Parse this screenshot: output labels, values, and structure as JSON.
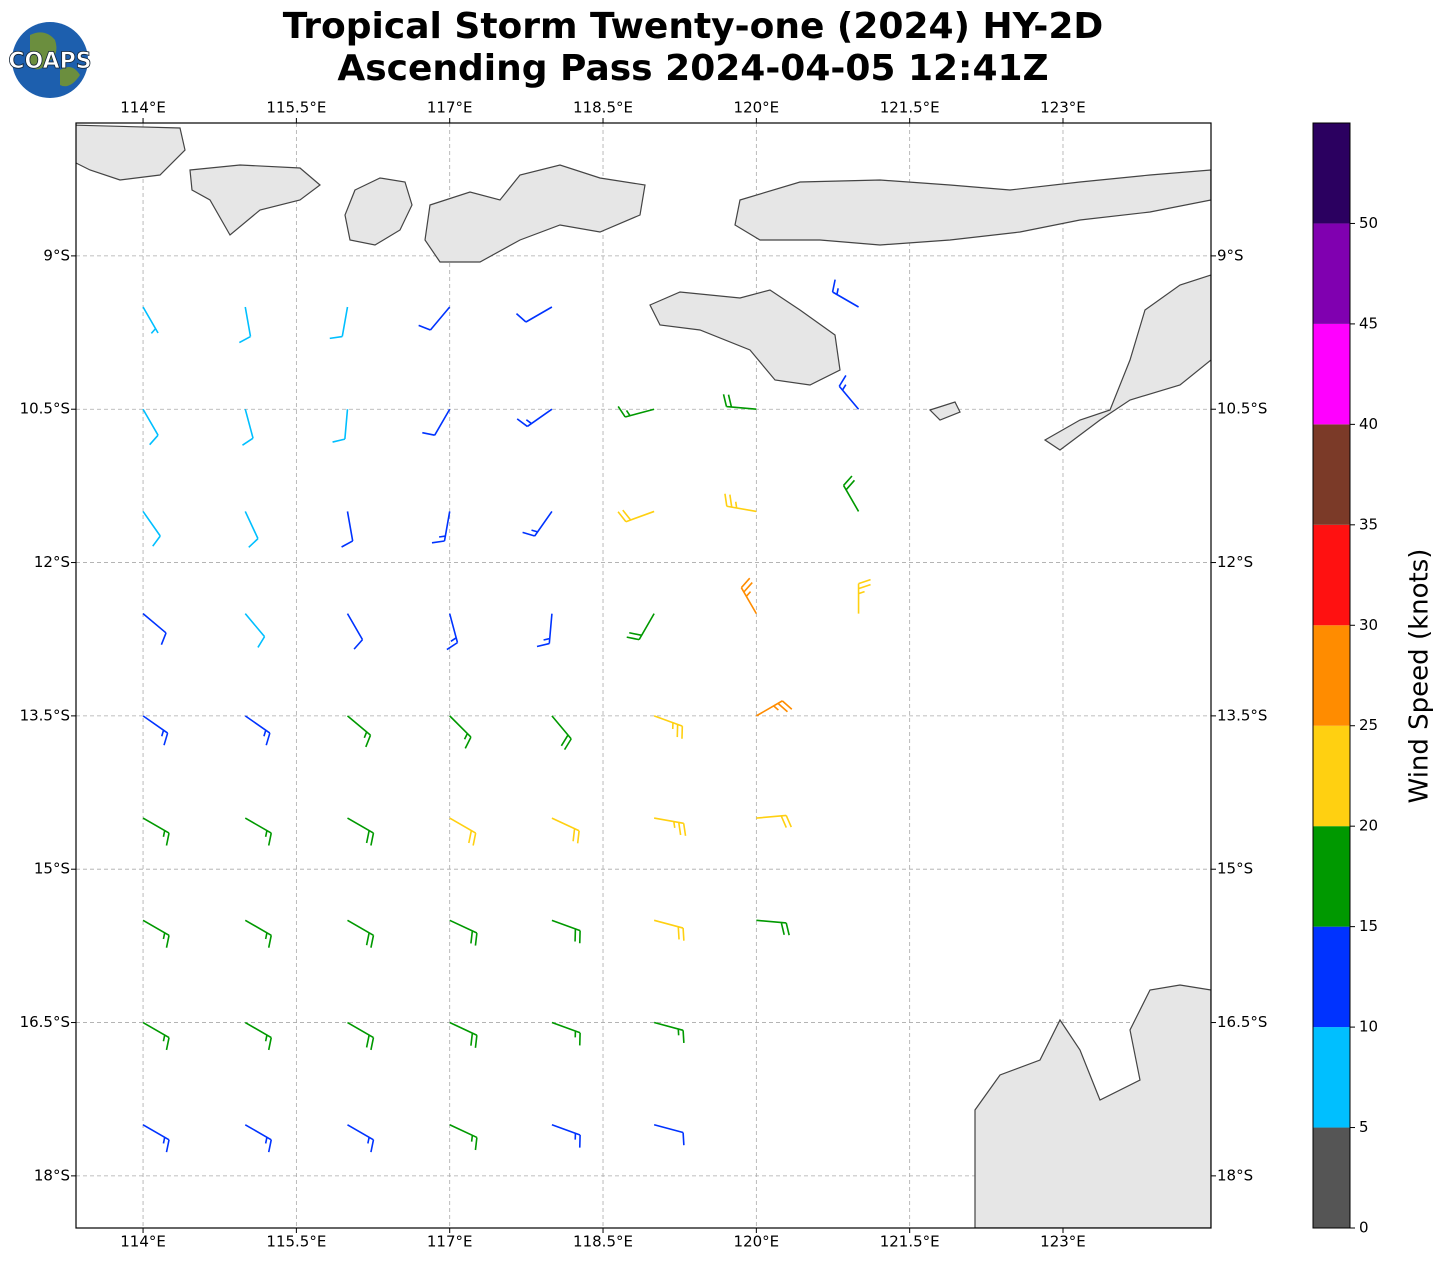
{
  "chart_data": {
    "type": "wind-barb",
    "logo": "COAPS",
    "title": [
      "Tropical Storm Twenty-one (2024) HY-2D",
      "Ascending Pass 2024-04-05 12:41Z"
    ],
    "xlim": [
      113.344,
      124.448
    ],
    "ylim": [
      -18.51,
      -7.7
    ],
    "grid": true,
    "xticks": [
      {
        "value": 114,
        "label": "114°E"
      },
      {
        "value": 115.5,
        "label": "115.5°E"
      },
      {
        "value": 117,
        "label": "117°E"
      },
      {
        "value": 118.5,
        "label": "118.5°E"
      },
      {
        "value": 120,
        "label": "120°E"
      },
      {
        "value": 121.5,
        "label": "121.5°E"
      },
      {
        "value": 123,
        "label": "123°E"
      }
    ],
    "yticks": [
      {
        "value": -9,
        "label": "9°S"
      },
      {
        "value": -10.5,
        "label": "10.5°S"
      },
      {
        "value": -12,
        "label": "12°S"
      },
      {
        "value": -13.5,
        "label": "13.5°S"
      },
      {
        "value": -15,
        "label": "15°S"
      },
      {
        "value": -16.5,
        "label": "16.5°S"
      },
      {
        "value": -18,
        "label": "18°S"
      }
    ],
    "lon": [
      114,
      115,
      116,
      117,
      118,
      119,
      120,
      121
    ],
    "lat": [
      -9.5,
      -10.5,
      -11.5,
      -12.5,
      -13.5,
      -14.5,
      -15.5,
      -16.5,
      -17.5
    ],
    "speed": [
      [
        6,
        8,
        9,
        12,
        12,
        null,
        null,
        13
      ],
      [
        8,
        8,
        9,
        12,
        13,
        17,
        18,
        14
      ],
      [
        8,
        9,
        11,
        13,
        14,
        20,
        24,
        19
      ],
      [
        10,
        9,
        12,
        14,
        14,
        18,
        27,
        24
      ],
      [
        13,
        14,
        17,
        16,
        19,
        23,
        26,
        null
      ],
      [
        16,
        17,
        18,
        21,
        22,
        23,
        22,
        null
      ],
      [
        17,
        17,
        18,
        19,
        19,
        21,
        19,
        null
      ],
      [
        15,
        17,
        18,
        18,
        17,
        17,
        null,
        null
      ],
      [
        13,
        13,
        14,
        15,
        14,
        12,
        null,
        null
      ]
    ],
    "direction": [
      [
        150,
        170,
        190,
        220,
        240,
        null,
        null,
        300
      ],
      [
        150,
        165,
        185,
        210,
        235,
        255,
        275,
        320
      ],
      [
        145,
        155,
        170,
        190,
        215,
        250,
        280,
        330
      ],
      [
        130,
        140,
        150,
        165,
        185,
        210,
        330,
        0
      ],
      [
        125,
        125,
        130,
        135,
        140,
        110,
        60,
        null
      ],
      [
        120,
        120,
        120,
        120,
        115,
        100,
        85,
        null
      ],
      [
        120,
        120,
        120,
        115,
        110,
        105,
        95,
        null
      ],
      [
        120,
        120,
        120,
        115,
        110,
        105,
        null,
        null
      ],
      [
        120,
        120,
        120,
        115,
        110,
        105,
        null,
        null
      ]
    ],
    "colorbar": {
      "label": "Wind Speed (knots)",
      "bounds": [
        0,
        5,
        10,
        15,
        20,
        25,
        30,
        35,
        40,
        45,
        50,
        55
      ],
      "colors": [
        "#555555",
        "#00bfff",
        "#0033ff",
        "#009900",
        "#ffd011",
        "#ff8c00",
        "#ff1111",
        "#7b3a28",
        "#ff00ff",
        "#8000b0",
        "#2b0060"
      ],
      "ticks": [
        0,
        5,
        10,
        15,
        20,
        25,
        30,
        35,
        40,
        45,
        50
      ]
    }
  }
}
